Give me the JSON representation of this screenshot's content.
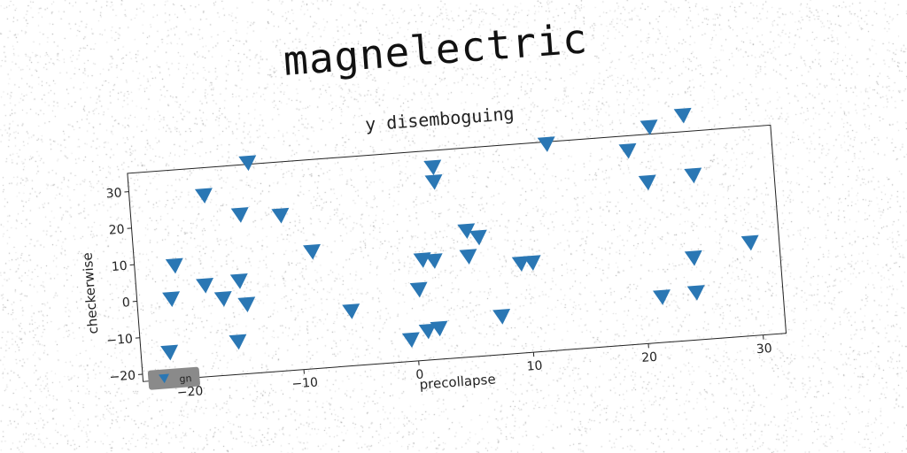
{
  "page": {
    "title": "magnelectric"
  },
  "colors": {
    "marker": "#2a77b4",
    "legend_bg": "#8a8a8a",
    "axes": "#222222"
  },
  "chart_data": {
    "type": "scatter",
    "title": "y disemboguing",
    "xlabel": "precollapse",
    "ylabel": "checkerwise",
    "xlim": [
      -24,
      32
    ],
    "ylim": [
      -22,
      35
    ],
    "xticks": [
      -20,
      -10,
      0,
      10,
      20,
      30
    ],
    "yticks": [
      -20,
      -10,
      0,
      10,
      20,
      30
    ],
    "grid": false,
    "legend": {
      "placement": "bottom-left",
      "entries": [
        "gn"
      ]
    },
    "marker": "triangle-down",
    "series": [
      {
        "name": "gn",
        "points": [
          [
            -13.5,
            35.5
          ],
          [
            -17.5,
            27.5
          ],
          [
            -14.5,
            21.5
          ],
          [
            -11,
            20.5
          ],
          [
            -20.5,
            9
          ],
          [
            -8.5,
            10
          ],
          [
            -18,
            3
          ],
          [
            -15,
            3.5
          ],
          [
            -21,
            0
          ],
          [
            -16.5,
            -1
          ],
          [
            -14.5,
            -3
          ],
          [
            -5.5,
            -7
          ],
          [
            -15.5,
            -13
          ],
          [
            -21.5,
            -14.5
          ],
          [
            2.5,
            30.5
          ],
          [
            2.5,
            26.5
          ],
          [
            5,
            12.5
          ],
          [
            6,
            10.5
          ],
          [
            1,
            5.5
          ],
          [
            2,
            5
          ],
          [
            5,
            5.5
          ],
          [
            0.5,
            -2.5
          ],
          [
            9.5,
            2.5
          ],
          [
            10.5,
            2.5
          ],
          [
            7.5,
            -11.5
          ],
          [
            1,
            -14
          ],
          [
            2,
            -13.5
          ],
          [
            -0.5,
            -16
          ],
          [
            12.5,
            34.5
          ],
          [
            19.5,
            31
          ],
          [
            21.5,
            37
          ],
          [
            24.5,
            39.5
          ],
          [
            21,
            22
          ],
          [
            25,
            23
          ],
          [
            24.5,
            0.5
          ],
          [
            29.5,
            3.5
          ],
          [
            21.5,
            -9.5
          ],
          [
            24.5,
            -9
          ]
        ]
      }
    ]
  }
}
